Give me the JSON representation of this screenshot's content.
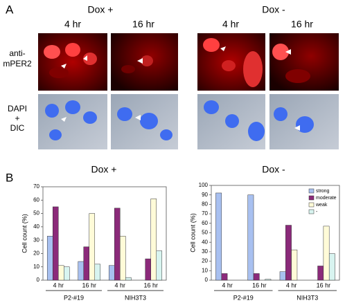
{
  "panel_a": {
    "label": "A",
    "groups": [
      {
        "title": "Dox +",
        "columns": [
          "4 hr",
          "16 hr"
        ]
      },
      {
        "title": "Dox -",
        "columns": [
          "4 hr",
          "16 hr"
        ]
      }
    ],
    "rows": [
      [
        "anti-",
        "mPER2"
      ],
      [
        "DAPI",
        "+",
        "DIC"
      ]
    ]
  },
  "panel_b": {
    "label": "B"
  },
  "chart_data": [
    {
      "type": "bar",
      "title": "Dox +",
      "y_label": "Cell count (%)",
      "categories": [
        "4 hr",
        "16 hr",
        "4 hr",
        "16 hr"
      ],
      "groups": [
        "P2-#19",
        "NIH3T3"
      ],
      "ylim": [
        0,
        70
      ],
      "yticks": [
        0,
        10,
        20,
        30,
        40,
        50,
        60,
        70
      ],
      "legend": false,
      "series": [
        {
          "color": "#a8c0f0",
          "values": [
            33,
            14,
            11,
            0
          ]
        },
        {
          "color": "#8b2a7a",
          "values": [
            55,
            25,
            54,
            16
          ]
        },
        {
          "color": "#fffbd8",
          "values": [
            11,
            50,
            33,
            61
          ]
        },
        {
          "color": "#d8f4f0",
          "values": [
            10,
            12,
            2,
            22
          ]
        }
      ]
    },
    {
      "type": "bar",
      "title": "Dox -",
      "y_label": "Cell count (%)",
      "categories": [
        "4 hr",
        "16 hr",
        "4 hr",
        "16 hr"
      ],
      "groups": [
        "P2-#19",
        "NIH3T3"
      ],
      "ylim": [
        0,
        100
      ],
      "yticks": [
        0,
        10,
        20,
        30,
        40,
        50,
        60,
        70,
        80,
        90,
        100
      ],
      "legend": true,
      "series": [
        {
          "name": "strong",
          "color": "#a8c0f0",
          "values": [
            92,
            90,
            9,
            0
          ]
        },
        {
          "name": "moderate",
          "color": "#8b2a7a",
          "values": [
            7,
            7,
            58,
            15
          ]
        },
        {
          "name": "weak",
          "color": "#fffbd8",
          "values": [
            0,
            0,
            32,
            57
          ]
        },
        {
          "name": "-",
          "color": "#d8f4f0",
          "values": [
            0,
            1,
            0,
            28
          ]
        }
      ]
    }
  ]
}
